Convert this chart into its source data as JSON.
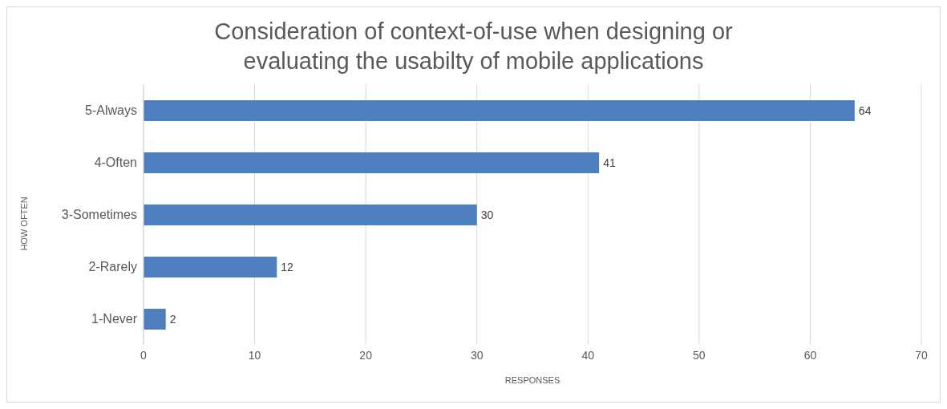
{
  "chart_data": {
    "type": "bar",
    "orientation": "horizontal",
    "title": "Consideration of context-of-use when designing or evaluating the usabilty of mobile applications",
    "xlabel": "RESPONSES",
    "ylabel": "HOW OFTEN",
    "categories": [
      "5-Always",
      "4-Often",
      "3-Sometimes",
      "2-Rarely",
      "1-Never"
    ],
    "values": [
      64,
      41,
      30,
      12,
      2
    ],
    "color": "#4e7fbf",
    "xlim": [
      0,
      70
    ],
    "xticks": [
      0,
      10,
      20,
      30,
      40,
      50,
      60,
      70
    ],
    "grid": "x",
    "data_labels": true,
    "legend": false
  }
}
